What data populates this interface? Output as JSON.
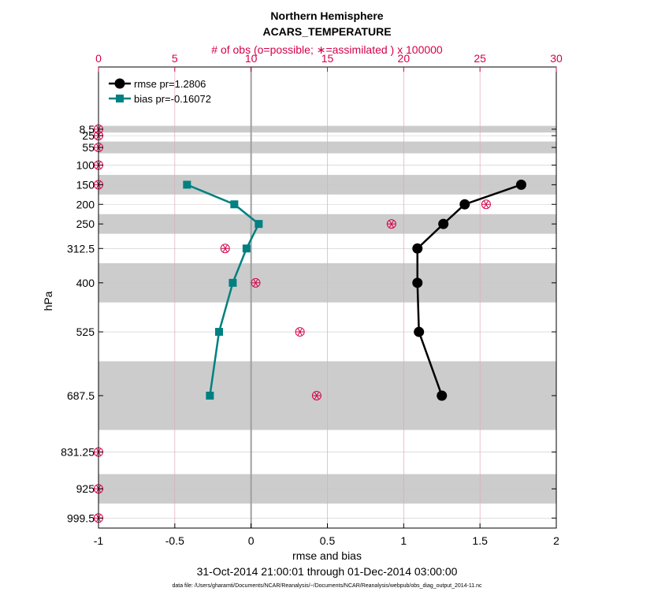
{
  "chart_data": {
    "type": "line",
    "title": "Northern Hemisphere",
    "subtitle": "ACARS_TEMPERATURE",
    "top_axis_label": "# of obs (o=possible; ∗=assimilated ) x 100000",
    "xlabel": "rmse and bias",
    "ylabel": "hPa",
    "date_range": "31-Oct-2014 21:00:01 through 01-Dec-2014 03:00:00",
    "footnote": "data file: /Users/gharamti/Documents/NCAR/Reanalysis/~/Documents/NCAR/Reanalysis/webpub/obs_diag_output_2014-11.nc",
    "xlim": [
      -1,
      2
    ],
    "x_ticks": [
      -1,
      -0.5,
      0,
      0.5,
      1,
      1.5,
      2
    ],
    "x_tick_labels": [
      "-1",
      "-0.5",
      "0",
      "0.5",
      "1",
      "1.5",
      "2"
    ],
    "top_xlim": [
      0,
      30
    ],
    "top_ticks": [
      0,
      5,
      10,
      15,
      20,
      25,
      30
    ],
    "top_tick_labels": [
      "0",
      "5",
      "10",
      "15",
      "20",
      "25",
      "30"
    ],
    "ylim": [
      1025,
      -150
    ],
    "y_ticks": [
      8.5,
      25,
      55,
      100,
      150,
      200,
      250,
      312.5,
      400,
      525,
      687.5,
      831.25,
      925,
      999.5
    ],
    "y_tick_labels": [
      "8.5",
      "25",
      "55",
      "100",
      "150",
      "200",
      "250",
      "312.5",
      "400",
      "525",
      "687.5",
      "831.25",
      "925",
      "999.5"
    ],
    "grey_bands": [
      [
        0,
        17
      ],
      [
        40,
        70
      ],
      [
        125,
        175
      ],
      [
        225,
        275
      ],
      [
        350,
        450
      ],
      [
        600,
        775
      ],
      [
        887.5,
        962.5
      ]
    ],
    "legend_position": "top-left",
    "series": [
      {
        "name": "rmse pr=1.2806",
        "color": "#000000",
        "marker": "circle",
        "levels": [
          150,
          200,
          250,
          312.5,
          400,
          525,
          687.5
        ],
        "values": [
          1.77,
          1.4,
          1.26,
          1.09,
          1.09,
          1.1,
          1.25
        ]
      },
      {
        "name": "bias pr=-0.16072",
        "color": "#008080",
        "marker": "square",
        "levels": [
          150,
          200,
          250,
          312.5,
          400,
          525,
          687.5
        ],
        "values": [
          -0.42,
          -0.11,
          0.05,
          -0.03,
          -0.12,
          -0.21,
          -0.27
        ]
      }
    ],
    "obs_counts": {
      "color": "#d6004a",
      "levels": [
        8.5,
        25,
        55,
        100,
        150,
        200,
        250,
        312.5,
        400,
        525,
        687.5,
        831.25,
        925,
        999.5
      ],
      "possible": [
        0,
        0,
        0,
        0,
        0,
        25.4,
        19.2,
        8.3,
        10.3,
        13.2,
        14.3,
        0,
        0,
        0
      ],
      "assimilated": [
        0,
        0,
        0,
        0,
        0,
        25.4,
        19.2,
        8.3,
        10.3,
        13.2,
        14.3,
        0,
        0,
        0
      ]
    },
    "colors": {
      "axis": "#000000",
      "top_axis": "#d6004a",
      "band": "#cccccc",
      "grid": "#c9c9c9",
      "vgrid_top": "#e0a8b8"
    }
  }
}
